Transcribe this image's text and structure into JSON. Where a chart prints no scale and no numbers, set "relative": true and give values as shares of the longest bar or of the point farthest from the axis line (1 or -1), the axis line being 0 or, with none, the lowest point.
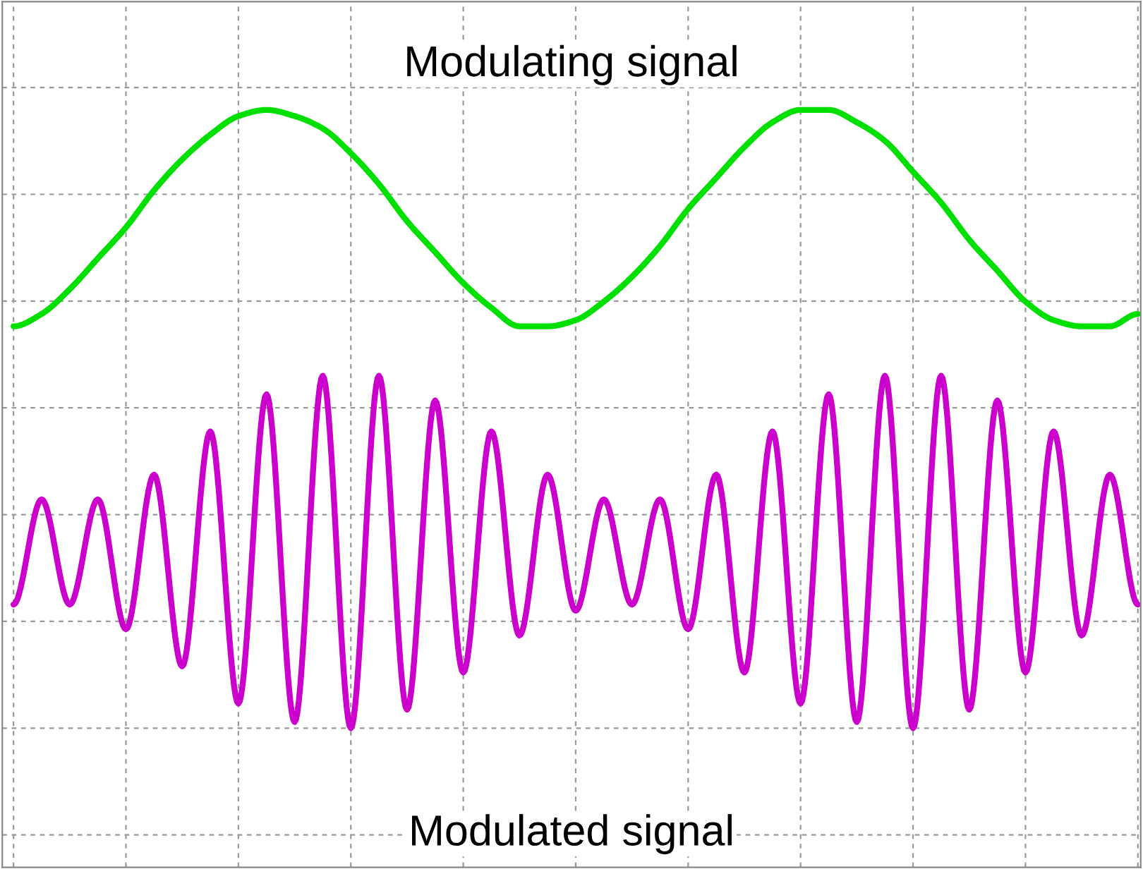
{
  "chart_data": {
    "type": "line",
    "relative": true,
    "grid": true,
    "line_style": "solid",
    "marker": "none",
    "categories": [
      null,
      null,
      null,
      null,
      null,
      null,
      null,
      null,
      null,
      null,
      null,
      null,
      null,
      null,
      null,
      null,
      null,
      null,
      null,
      null,
      null,
      null,
      null,
      null,
      null,
      null,
      null,
      null,
      null,
      null,
      null,
      null,
      null,
      null,
      null,
      null,
      null,
      null,
      null,
      null,
      null
    ],
    "annotations": [
      "Modulating signal",
      "Modulated signal"
    ],
    "series": [
      {
        "color": "#00e000",
        "values": [
          0.65,
          0.67,
          0.71,
          0.76,
          0.81,
          0.87,
          0.92,
          0.96,
          0.99,
          1.0,
          0.99,
          0.97,
          0.93,
          0.88,
          0.82,
          0.77,
          0.72,
          0.68,
          0.65,
          0.65,
          0.66,
          0.69,
          0.73,
          0.78,
          0.84,
          0.89,
          0.94,
          0.98,
          1.0,
          1.0,
          0.98,
          0.95,
          0.9,
          0.85,
          0.79,
          0.74,
          0.69,
          0.66,
          0.65,
          0.65,
          0.67
        ]
      },
      {
        "color": "#cc00cc",
        "values": [
          0.2,
          0.37,
          0.2,
          0.37,
          0.16,
          0.41,
          0.1,
          0.48,
          0.04,
          0.54,
          0.01,
          0.57,
          0.0,
          0.57,
          0.03,
          0.53,
          0.09,
          0.48,
          0.15,
          0.41,
          0.19,
          0.37,
          0.2,
          0.37,
          0.16,
          0.41,
          0.09,
          0.48,
          0.04,
          0.54,
          0.01,
          0.57,
          0.0,
          0.57,
          0.03,
          0.53,
          0.09,
          0.48,
          0.15,
          0.41,
          0.2
        ]
      }
    ]
  }
}
